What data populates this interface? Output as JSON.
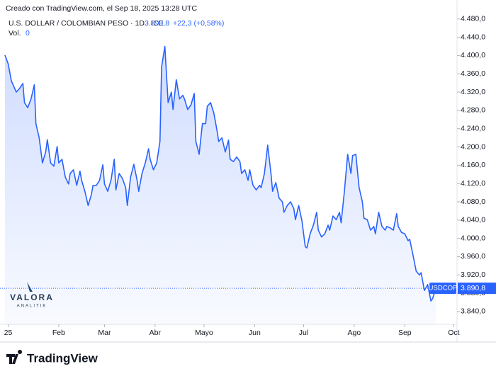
{
  "credit": "Creado con TradingView.com, el Sep 18, 2025 13:28 UTC",
  "watermark": {
    "name": "VALORA",
    "sub": "ANALITIK"
  },
  "logo": "TradingView",
  "chart_data": {
    "type": "area",
    "title": "U.S. DOLLAR / COLOMBIAN PESO · 1D · ICE",
    "price": "3.890,8",
    "change": "+22,3 (+0,58%)",
    "volume_label": "Vol.",
    "volume_value": "0",
    "symbol": "USDCOP",
    "grid": false,
    "xlim": [
      -4,
      276
    ],
    "xticks": [
      {
        "value": 1,
        "label": "25"
      },
      {
        "value": 32,
        "label": "Feb"
      },
      {
        "value": 60,
        "label": "Mar"
      },
      {
        "value": 91,
        "label": "Abr"
      },
      {
        "value": 121,
        "label": "Mayo"
      },
      {
        "value": 152,
        "label": "Jun"
      },
      {
        "value": 182,
        "label": "Jul"
      },
      {
        "value": 213,
        "label": "Ago"
      },
      {
        "value": 244,
        "label": "Sep"
      },
      {
        "value": 274,
        "label": "Oct"
      }
    ],
    "ylim": [
      3812,
      4506
    ],
    "yticks": [
      {
        "value": 3840,
        "label": "3.840,0"
      },
      {
        "value": 3880,
        "label": "3.880,0"
      },
      {
        "value": 3920,
        "label": "3.920,0"
      },
      {
        "value": 3960,
        "label": "3.960,0"
      },
      {
        "value": 4000,
        "label": "4.000,0"
      },
      {
        "value": 4040,
        "label": "4.040,0"
      },
      {
        "value": 4080,
        "label": "4.080,0"
      },
      {
        "value": 4120,
        "label": "4.120,0"
      },
      {
        "value": 4160,
        "label": "4.160,0"
      },
      {
        "value": 4200,
        "label": "4.200,0"
      },
      {
        "value": 4240,
        "label": "4.240,0"
      },
      {
        "value": 4280,
        "label": "4.280,0"
      },
      {
        "value": 4320,
        "label": "4.320,0"
      },
      {
        "value": 4360,
        "label": "4.360,0"
      },
      {
        "value": 4400,
        "label": "4.400,0"
      },
      {
        "value": 4440,
        "label": "4.440,0"
      },
      {
        "value": 4480,
        "label": "4.480,0"
      }
    ],
    "x": [
      -1,
      1,
      3,
      4,
      6,
      8,
      10,
      11,
      13,
      15,
      17,
      18,
      20,
      22,
      24,
      25,
      27,
      29,
      31,
      32,
      34,
      36,
      38,
      39,
      41,
      43,
      45,
      46,
      48,
      50,
      52,
      53,
      55,
      57,
      59,
      60,
      62,
      64,
      66,
      67,
      69,
      71,
      73,
      74,
      76,
      78,
      80,
      81,
      83,
      85,
      87,
      88,
      90,
      92,
      94,
      95,
      97,
      99,
      101,
      102,
      104,
      106,
      108,
      109,
      111,
      113,
      115,
      116,
      118,
      120,
      122,
      123,
      125,
      127,
      129,
      130,
      132,
      134,
      136,
      137,
      139,
      141,
      143,
      144,
      146,
      148,
      149,
      151,
      153,
      155,
      156,
      158,
      160,
      162,
      163,
      165,
      167,
      169,
      170,
      172,
      174,
      176,
      177,
      179,
      181,
      183,
      184,
      186,
      188,
      190,
      191,
      193,
      195,
      197,
      198,
      200,
      202,
      204,
      205,
      207,
      209,
      211,
      212,
      214,
      216,
      218,
      219,
      221,
      223,
      225,
      226,
      228,
      230,
      232,
      233,
      235,
      237,
      239,
      240,
      242,
      244,
      246,
      247,
      249,
      251,
      253,
      254,
      256,
      258,
      260,
      261,
      263
    ],
    "series": [
      {
        "name": "USDCOP",
        "color": "#2962ff",
        "values": [
          4401,
          4382,
          4344,
          4336,
          4320,
          4328,
          4339,
          4297,
          4286,
          4305,
          4336,
          4251,
          4220,
          4165,
          4189,
          4216,
          4165,
          4158,
          4201,
          4165,
          4173,
          4134,
          4119,
          4142,
          4150,
          4116,
          4147,
          4127,
          4103,
          4072,
          4096,
          4116,
          4116,
          4127,
          4161,
          4119,
          4103,
          4127,
          4173,
          4106,
          4142,
          4131,
          4111,
          4072,
          4134,
          4162,
          4127,
          4103,
          4142,
          4165,
          4196,
          4173,
          4150,
          4165,
          4212,
          4375,
          4420,
          4297,
          4320,
          4282,
          4347,
          4305,
          4313,
          4305,
          4282,
          4292,
          4317,
          4212,
          4184,
          4251,
          4251,
          4289,
          4297,
          4274,
          4235,
          4212,
          4220,
          4189,
          4215,
          4173,
          4168,
          4178,
          4168,
          4142,
          4150,
          4127,
          4150,
          4116,
          4106,
          4116,
          4111,
          4142,
          4204,
          4142,
          4103,
          4122,
          4088,
          4080,
          4057,
          4072,
          4080,
          4065,
          4041,
          4072,
          4038,
          3982,
          3979,
          4010,
          4029,
          4057,
          4018,
          4003,
          4010,
          4029,
          4018,
          4049,
          4041,
          4057,
          4034,
          4103,
          4184,
          4142,
          4181,
          4184,
          4111,
          4080,
          4044,
          4041,
          4018,
          4026,
          4010,
          4057,
          4026,
          4018,
          4026,
          4023,
          4018,
          4054,
          4026,
          4013,
          4010,
          3995,
          3998,
          3964,
          3928,
          3920,
          3925,
          3886,
          3899,
          3863,
          3868,
          3890.8
        ]
      }
    ]
  }
}
